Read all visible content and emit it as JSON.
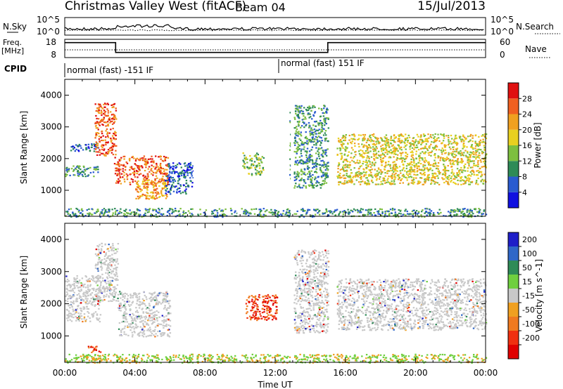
{
  "header": {
    "title": "Christmas Valley West (fitACF)",
    "beam": "Beam 04",
    "date": "15/Jul/2013"
  },
  "summary_panels": {
    "nsky_label": "N.Sky",
    "nsky_ticks": [
      "10^5",
      "10^0"
    ],
    "nsearch_label": "N.Search",
    "nsearch_ticks": [
      "10^5",
      "10^0"
    ],
    "freq_label": "Freq.",
    "freq_unit": "[MHz]",
    "freq_ticks": [
      "18",
      "8"
    ],
    "nave_label": "Nave",
    "nave_ticks": [
      "60",
      "0"
    ],
    "cpid_label": "CPID",
    "cpid_segments": [
      {
        "text": "normal (fast) -151 IF",
        "start_hour": 0,
        "end_hour": 12.2
      },
      {
        "text": "normal (fast) 151 IF",
        "start_hour": 12.2,
        "end_hour": 24
      }
    ],
    "freq_steps": [
      {
        "start_hour": 0,
        "end_hour": 2.9,
        "mhz": 16.2
      },
      {
        "start_hour": 2.9,
        "end_hour": 15,
        "mhz": 10.8
      },
      {
        "start_hour": 15,
        "end_hour": 24,
        "mhz": 16.2
      }
    ],
    "data_gaps_hours": [
      7.4,
      9.9,
      12.95
    ]
  },
  "chart_data": [
    {
      "type": "heatmap",
      "name": "power",
      "ylabel": "Slant Range [km]",
      "yticks": [
        1000,
        2000,
        3000,
        4000
      ],
      "ylim": [
        180,
        4500
      ],
      "xlim": [
        0,
        24
      ],
      "colorbar_label": "Power [dB]",
      "colorbar_ticks": [
        "4",
        "8",
        "12",
        "16",
        "20",
        "24",
        "28"
      ],
      "colorbar_colors": [
        "#1010e0",
        "#2a5bd0",
        "#2e8b57",
        "#7dbf3f",
        "#e8d020",
        "#f0a020",
        "#f06020",
        "#e01010"
      ],
      "features": [
        {
          "hours": [
            0.3,
            1.9
          ],
          "range_km": [
            2250,
            2500
          ],
          "level": 1
        },
        {
          "hours": [
            0.0,
            1.9
          ],
          "range_km": [
            1450,
            1800
          ],
          "level": 2
        },
        {
          "hours": [
            1.7,
            2.9
          ],
          "range_km": [
            2100,
            3800
          ],
          "level": 6
        },
        {
          "hours": [
            2.8,
            5.9
          ],
          "range_km": [
            1200,
            2100
          ],
          "level": 6
        },
        {
          "hours": [
            4.0,
            5.8
          ],
          "range_km": [
            750,
            1350
          ],
          "level": 5
        },
        {
          "hours": [
            5.7,
            7.3
          ],
          "range_km": [
            900,
            1900
          ],
          "level": 1
        },
        {
          "hours": [
            10.1,
            11.3
          ],
          "range_km": [
            1500,
            2200
          ],
          "level": 3
        },
        {
          "hours": [
            12.8,
            15.0
          ],
          "range_km": [
            1100,
            3700
          ],
          "level": 2
        },
        {
          "hours": [
            15.5,
            24.0
          ],
          "range_km": [
            1200,
            2800
          ],
          "level": 4
        },
        {
          "hours": [
            0.0,
            24.0
          ],
          "range_km": [
            180,
            450
          ],
          "level": 2
        }
      ]
    },
    {
      "type": "heatmap",
      "name": "velocity",
      "ylabel": "Slant Range [km]",
      "yticks": [
        1000,
        2000,
        3000,
        4000
      ],
      "ylim": [
        180,
        4500
      ],
      "xlim": [
        0,
        24
      ],
      "colorbar_label": "Velocity [m s^-1]",
      "colorbar_ticks": [
        "200",
        "100",
        "50",
        "15",
        "-15",
        "-50",
        "-100",
        "-200"
      ],
      "colorbar_colors": [
        "#1e1ec8",
        "#2f67c8",
        "#2e8b57",
        "#6fcf3f",
        "#c8c8c8",
        "#f0a020",
        "#f07a20",
        "#f03010",
        "#e00000"
      ],
      "features": [
        {
          "hours": [
            0.0,
            2.0
          ],
          "range_km": [
            1450,
            2900
          ],
          "level": "grey"
        },
        {
          "hours": [
            1.7,
            3.0
          ],
          "range_km": [
            2100,
            3900
          ],
          "level": "grey"
        },
        {
          "hours": [
            3.0,
            6.0
          ],
          "range_km": [
            1000,
            2400
          ],
          "level": "grey"
        },
        {
          "hours": [
            1.3,
            2.1
          ],
          "range_km": [
            500,
            700
          ],
          "level": "red"
        },
        {
          "hours": [
            10.3,
            12.1
          ],
          "range_km": [
            1500,
            2300
          ],
          "level": "red"
        },
        {
          "hours": [
            12.9,
            15.0
          ],
          "range_km": [
            1100,
            3700
          ],
          "level": "grey"
        },
        {
          "hours": [
            15.5,
            24.0
          ],
          "range_km": [
            1200,
            2800
          ],
          "level": "grey"
        },
        {
          "hours": [
            0.0,
            24.0
          ],
          "range_km": [
            180,
            450
          ],
          "level": "green"
        }
      ]
    }
  ],
  "x_axis": {
    "label": "Time UT",
    "tick_labels": [
      "00:00",
      "04:00",
      "08:00",
      "12:00",
      "16:00",
      "20:00",
      "00:00"
    ]
  }
}
